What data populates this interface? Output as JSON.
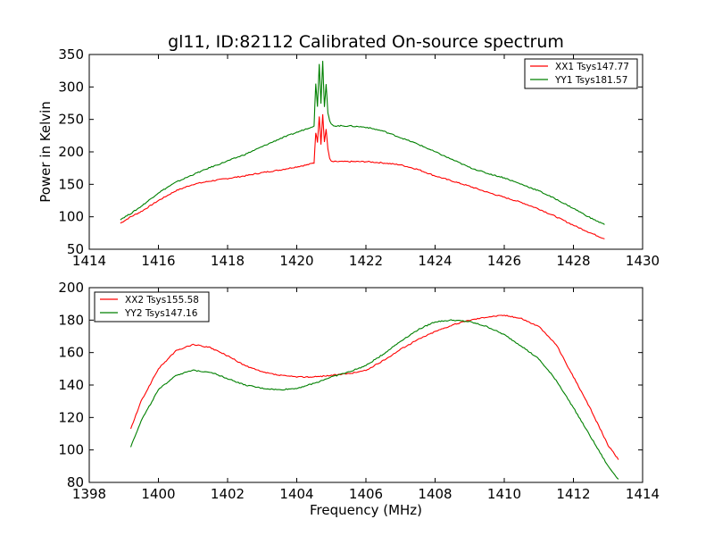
{
  "chart_data": [
    {
      "type": "line",
      "title": "gl11, ID:82112 Calibrated On-source spectrum",
      "xlabel": "",
      "ylabel": "Power in Kelvin",
      "xlim": [
        1414,
        1430
      ],
      "ylim": [
        50,
        350
      ],
      "xticks": [
        "1414",
        "1416",
        "1418",
        "1420",
        "1422",
        "1424",
        "1426",
        "1428",
        "1430"
      ],
      "yticks": [
        "50",
        "100",
        "150",
        "200",
        "250",
        "300",
        "350"
      ],
      "legend_position": "top-right",
      "grid": false,
      "series": [
        {
          "name": "XX1 Tsys147.77",
          "color": "#ff0000",
          "x": [
            1414.9,
            1415.2,
            1415.5,
            1416.0,
            1416.5,
            1417.0,
            1417.5,
            1418.0,
            1418.5,
            1419.0,
            1419.5,
            1420.0,
            1420.3,
            1420.5,
            1420.55,
            1420.6,
            1420.65,
            1420.7,
            1420.75,
            1420.8,
            1420.85,
            1420.9,
            1420.95,
            1421.0,
            1421.1,
            1421.2,
            1421.5,
            1422.0,
            1422.5,
            1423.0,
            1423.5,
            1424.0,
            1424.5,
            1425.0,
            1425.5,
            1426.0,
            1426.5,
            1427.0,
            1427.5,
            1428.0,
            1428.5,
            1428.9
          ],
          "y": [
            90,
            100,
            108,
            125,
            140,
            150,
            155,
            159,
            163,
            168,
            172,
            177,
            180,
            183,
            230,
            215,
            255,
            212,
            258,
            215,
            235,
            205,
            190,
            185,
            185,
            185,
            185,
            185,
            183,
            180,
            173,
            163,
            155,
            147,
            138,
            130,
            122,
            112,
            100,
            87,
            75,
            66
          ]
        },
        {
          "name": "YY1 Tsys181.57",
          "color": "#008000",
          "x": [
            1414.9,
            1415.2,
            1415.5,
            1416.0,
            1416.5,
            1417.0,
            1417.5,
            1418.0,
            1418.5,
            1419.0,
            1419.5,
            1420.0,
            1420.3,
            1420.5,
            1420.55,
            1420.6,
            1420.65,
            1420.7,
            1420.75,
            1420.8,
            1420.85,
            1420.9,
            1420.95,
            1421.0,
            1421.1,
            1421.2,
            1421.5,
            1422.0,
            1422.5,
            1423.0,
            1423.5,
            1424.0,
            1424.5,
            1425.0,
            1425.5,
            1426.0,
            1426.5,
            1427.0,
            1427.5,
            1428.0,
            1428.5,
            1428.9
          ],
          "y": [
            96,
            105,
            116,
            137,
            153,
            165,
            176,
            186,
            196,
            208,
            220,
            230,
            236,
            240,
            305,
            270,
            335,
            275,
            340,
            270,
            305,
            260,
            248,
            242,
            240,
            240,
            240,
            238,
            232,
            222,
            212,
            200,
            188,
            176,
            167,
            160,
            150,
            140,
            127,
            113,
            98,
            88
          ]
        }
      ]
    },
    {
      "type": "line",
      "title": "",
      "xlabel": "Frequency (MHz)",
      "ylabel": "",
      "xlim": [
        1398,
        1414
      ],
      "ylim": [
        80,
        200
      ],
      "xticks": [
        "1398",
        "1400",
        "1402",
        "1404",
        "1406",
        "1408",
        "1410",
        "1412",
        "1414"
      ],
      "yticks": [
        "80",
        "100",
        "120",
        "140",
        "160",
        "180",
        "200"
      ],
      "legend_position": "top-left",
      "grid": false,
      "series": [
        {
          "name": "XX2 Tsys155.58",
          "color": "#ff0000",
          "x": [
            1399.2,
            1399.5,
            1400.0,
            1400.5,
            1401.0,
            1401.5,
            1402.0,
            1402.5,
            1403.0,
            1403.5,
            1404.0,
            1404.5,
            1405.0,
            1405.5,
            1406.0,
            1406.5,
            1407.0,
            1407.5,
            1408.0,
            1408.5,
            1409.0,
            1409.5,
            1410.0,
            1410.5,
            1411.0,
            1411.5,
            1412.0,
            1412.5,
            1413.0,
            1413.3
          ],
          "y": [
            113,
            130,
            150,
            161,
            165,
            163,
            158,
            152,
            148,
            146,
            145,
            145,
            146,
            147,
            149,
            155,
            162,
            168,
            173,
            177,
            180,
            182,
            183,
            181,
            176,
            165,
            145,
            125,
            103,
            94
          ]
        },
        {
          "name": "YY2 Tsys147.16",
          "color": "#008000",
          "x": [
            1399.2,
            1399.5,
            1400.0,
            1400.5,
            1401.0,
            1401.5,
            1402.0,
            1402.5,
            1403.0,
            1403.5,
            1404.0,
            1404.5,
            1405.0,
            1405.5,
            1406.0,
            1406.5,
            1407.0,
            1407.5,
            1408.0,
            1408.5,
            1409.0,
            1409.5,
            1410.0,
            1410.5,
            1411.0,
            1411.5,
            1412.0,
            1412.5,
            1413.0,
            1413.3
          ],
          "y": [
            102,
            118,
            137,
            146,
            149,
            148,
            144,
            140,
            138,
            137,
            138,
            141,
            145,
            148,
            152,
            159,
            167,
            174,
            179,
            180,
            179,
            176,
            171,
            164,
            156,
            143,
            126,
            108,
            90,
            82
          ]
        }
      ]
    }
  ]
}
